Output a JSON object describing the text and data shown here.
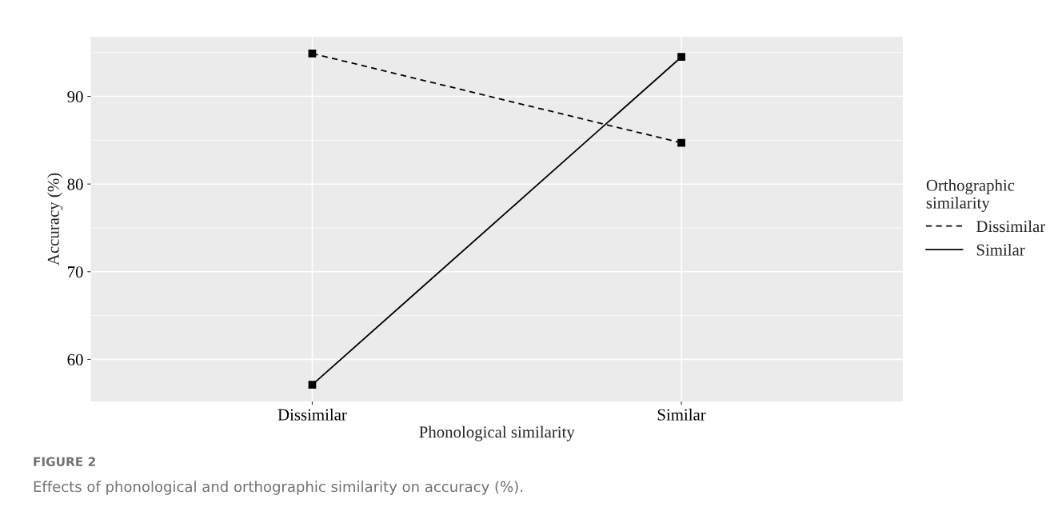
{
  "chart_data": {
    "type": "line",
    "xlabel": "Phonological similarity",
    "ylabel": "Accuracy (%)",
    "legend_title": "Orthographic\nsimilarity",
    "categories": [
      "Dissimilar",
      "Similar"
    ],
    "series": [
      {
        "name": "Dissimilar",
        "color": "#000000",
        "line_style": "dashed",
        "values": [
          94.9,
          84.7
        ]
      },
      {
        "name": "Similar",
        "color": "#000000",
        "line_style": "solid",
        "values": [
          57.1,
          94.5
        ]
      }
    ],
    "ylim": [
      55.2,
      96.8
    ],
    "yticks": [
      60,
      70,
      80,
      90
    ],
    "grid": true,
    "legend": "right",
    "marker": "square",
    "annotations": [
      "FIGURE 2",
      "Effects of phonological and orthographic similarity on accuracy (%)."
    ]
  }
}
